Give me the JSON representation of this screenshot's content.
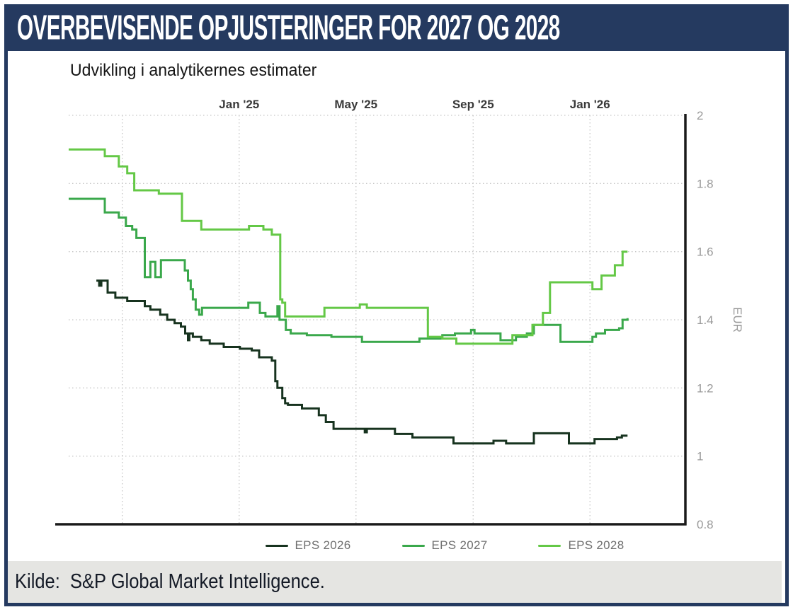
{
  "header": {
    "title": "OVERBEVISENDE OPJUSTERINGER FOR 2027 OG 2028"
  },
  "footer": {
    "text": "Kilde:  S&P Global Market Intelligence."
  },
  "colors": {
    "navy": "#253a60",
    "footer_bg": "#e5e5e2",
    "grid": "#c6c6c6",
    "axis_spine": "#1a1a1a",
    "y_tick_label": "#9a9a9a",
    "x_tick_label": "#3a3a3a",
    "legend_text": "#6f6f6f",
    "eps_2026": "#17331f",
    "eps_2027": "#3aa84b",
    "eps_2028": "#64c846"
  },
  "chart_data": {
    "type": "line",
    "line_style": "step-after",
    "title": "Udvikling i analytikernes estimater",
    "xlabel": "",
    "ylabel": "EUR",
    "grid": true,
    "legend_position": "bottom",
    "x_axis": {
      "min": 2024.514,
      "max": 2026.272,
      "labels_position": "top",
      "ticks": [
        {
          "v": 2024.667,
          "label": ""
        },
        {
          "v": 2025.0,
          "label": "Jan '25"
        },
        {
          "v": 2025.333,
          "label": "May '25"
        },
        {
          "v": 2025.667,
          "label": "Sep '25"
        },
        {
          "v": 2026.0,
          "label": "Jan '26"
        }
      ]
    },
    "y_axis": {
      "min": 0.8,
      "max": 2.0,
      "unit": "EUR",
      "labels_position": "right",
      "ticks": [
        {
          "v": 2.0,
          "label": "2"
        },
        {
          "v": 1.8,
          "label": "1.8"
        },
        {
          "v": 1.6,
          "label": "1.6"
        },
        {
          "v": 1.4,
          "label": "1.4"
        },
        {
          "v": 1.2,
          "label": "1.2"
        },
        {
          "v": 1.0,
          "label": "1"
        },
        {
          "v": 0.8,
          "label": "0.8"
        }
      ]
    },
    "series": [
      {
        "name": "EPS 2026",
        "color": "#17331f",
        "points": [
          [
            2024.593,
            1.515
          ],
          [
            2024.601,
            1.5
          ],
          [
            2024.607,
            1.515
          ],
          [
            2024.625,
            1.48
          ],
          [
            2024.647,
            1.465
          ],
          [
            2024.681,
            1.455
          ],
          [
            2024.731,
            1.44
          ],
          [
            2024.747,
            1.43
          ],
          [
            2024.775,
            1.415
          ],
          [
            2024.795,
            1.4
          ],
          [
            2024.816,
            1.39
          ],
          [
            2024.834,
            1.38
          ],
          [
            2024.846,
            1.36
          ],
          [
            2024.854,
            1.34
          ],
          [
            2024.858,
            1.36
          ],
          [
            2024.868,
            1.35
          ],
          [
            2024.892,
            1.34
          ],
          [
            2024.916,
            1.33
          ],
          [
            2024.956,
            1.32
          ],
          [
            2025.002,
            1.315
          ],
          [
            2025.036,
            1.31
          ],
          [
            2025.057,
            1.29
          ],
          [
            2025.093,
            1.28
          ],
          [
            2025.103,
            1.22
          ],
          [
            2025.109,
            1.2
          ],
          [
            2025.123,
            1.17
          ],
          [
            2025.131,
            1.155
          ],
          [
            2025.139,
            1.15
          ],
          [
            2025.179,
            1.14
          ],
          [
            2025.227,
            1.12
          ],
          [
            2025.247,
            1.1
          ],
          [
            2025.269,
            1.08
          ],
          [
            2025.358,
            1.07
          ],
          [
            2025.364,
            1.08
          ],
          [
            2025.444,
            1.065
          ],
          [
            2025.494,
            1.055
          ],
          [
            2025.611,
            1.037
          ],
          [
            2025.725,
            1.045
          ],
          [
            2025.761,
            1.037
          ],
          [
            2025.84,
            1.067
          ],
          [
            2025.94,
            1.037
          ],
          [
            2026.013,
            1.05
          ],
          [
            2026.077,
            1.055
          ],
          [
            2026.091,
            1.06
          ],
          [
            2026.107,
            1.06
          ]
        ]
      },
      {
        "name": "EPS 2027",
        "color": "#3aa84b",
        "points": [
          [
            2024.514,
            1.755
          ],
          [
            2024.617,
            1.715
          ],
          [
            2024.657,
            1.7
          ],
          [
            2024.677,
            1.675
          ],
          [
            2024.695,
            1.665
          ],
          [
            2024.707,
            1.64
          ],
          [
            2024.731,
            1.525
          ],
          [
            2024.747,
            1.57
          ],
          [
            2024.761,
            1.525
          ],
          [
            2024.777,
            1.575
          ],
          [
            2024.845,
            1.545
          ],
          [
            2024.854,
            1.515
          ],
          [
            2024.862,
            1.49
          ],
          [
            2024.868,
            1.46
          ],
          [
            2024.876,
            1.43
          ],
          [
            2024.886,
            1.415
          ],
          [
            2024.894,
            1.435
          ],
          [
            2025.026,
            1.45
          ],
          [
            2025.059,
            1.42
          ],
          [
            2025.075,
            1.41
          ],
          [
            2025.109,
            1.44
          ],
          [
            2025.115,
            1.4
          ],
          [
            2025.133,
            1.37
          ],
          [
            2025.147,
            1.36
          ],
          [
            2025.193,
            1.355
          ],
          [
            2025.263,
            1.35
          ],
          [
            2025.35,
            1.335
          ],
          [
            2025.514,
            1.345
          ],
          [
            2025.579,
            1.355
          ],
          [
            2025.615,
            1.36
          ],
          [
            2025.661,
            1.37
          ],
          [
            2025.671,
            1.36
          ],
          [
            2025.745,
            1.34
          ],
          [
            2025.789,
            1.35
          ],
          [
            2025.82,
            1.36
          ],
          [
            2025.84,
            1.385
          ],
          [
            2025.916,
            1.335
          ],
          [
            2026.007,
            1.35
          ],
          [
            2026.017,
            1.36
          ],
          [
            2026.043,
            1.37
          ],
          [
            2026.083,
            1.375
          ],
          [
            2026.093,
            1.4
          ],
          [
            2026.107,
            1.405
          ]
        ]
      },
      {
        "name": "EPS 2028",
        "color": "#64c846",
        "points": [
          [
            2024.514,
            1.9
          ],
          [
            2024.617,
            1.88
          ],
          [
            2024.657,
            1.85
          ],
          [
            2024.681,
            1.83
          ],
          [
            2024.701,
            1.78
          ],
          [
            2024.771,
            1.77
          ],
          [
            2024.837,
            1.69
          ],
          [
            2024.892,
            1.665
          ],
          [
            2025.028,
            1.675
          ],
          [
            2025.069,
            1.665
          ],
          [
            2025.093,
            1.65
          ],
          [
            2025.117,
            1.46
          ],
          [
            2025.123,
            1.45
          ],
          [
            2025.131,
            1.41
          ],
          [
            2025.243,
            1.435
          ],
          [
            2025.344,
            1.445
          ],
          [
            2025.364,
            1.435
          ],
          [
            2025.538,
            1.35
          ],
          [
            2025.579,
            1.345
          ],
          [
            2025.619,
            1.33
          ],
          [
            2025.779,
            1.355
          ],
          [
            2025.836,
            1.385
          ],
          [
            2025.866,
            1.42
          ],
          [
            2025.886,
            1.51
          ],
          [
            2026.007,
            1.49
          ],
          [
            2026.033,
            1.53
          ],
          [
            2026.071,
            1.56
          ],
          [
            2026.093,
            1.6
          ],
          [
            2026.107,
            1.6
          ]
        ]
      }
    ]
  }
}
